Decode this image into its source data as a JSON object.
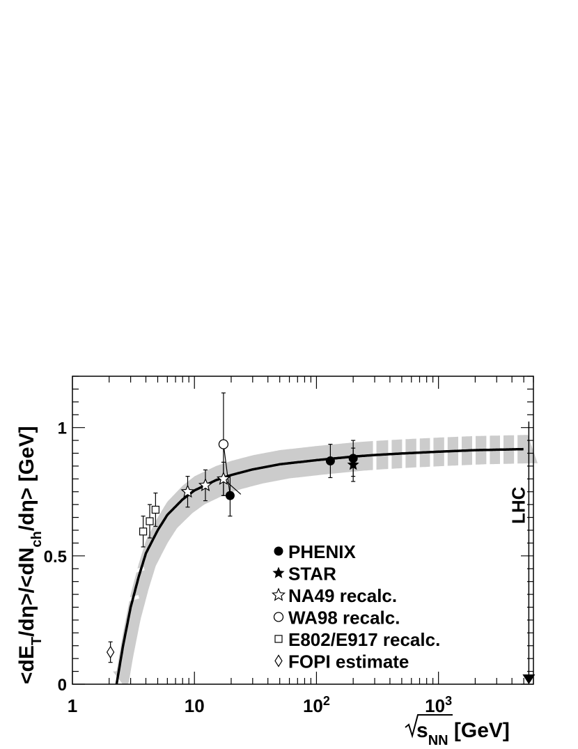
{
  "chart_data": {
    "type": "scatter",
    "xscale": "log",
    "xlim": [
      1,
      6000
    ],
    "ylim": [
      0,
      1.2
    ],
    "xlabel_main": "√s",
    "xlabel_sub": "NN",
    "xlabel_unit": " [GeV]",
    "ylabel": "<dE_T/dη>/<dN_ch/dη> [GeV]",
    "ylabel_parts": {
      "a": "<dE",
      "a_sub": "T",
      "b": "/dη>/<dN",
      "b_sub": "ch",
      "c": "/dη> [GeV]"
    },
    "x_ticks": [
      {
        "value": 1,
        "base": "1",
        "exp": ""
      },
      {
        "value": 10,
        "base": "10",
        "exp": ""
      },
      {
        "value": 100,
        "base": "10",
        "exp": "2"
      },
      {
        "value": 1000,
        "base": "10",
        "exp": "3"
      }
    ],
    "y_ticks": [
      {
        "value": 0,
        "label": "0"
      },
      {
        "value": 0.5,
        "label": "0.5"
      },
      {
        "value": 1,
        "label": "1"
      }
    ],
    "fit_curve": {
      "description": "a + b*ln(sqrt(s)), with uncertainty band",
      "points": [
        [
          2.3,
          0.0
        ],
        [
          2.6,
          0.15
        ],
        [
          3.0,
          0.3
        ],
        [
          3.5,
          0.42
        ],
        [
          4.0,
          0.51
        ],
        [
          5.0,
          0.6
        ],
        [
          6.0,
          0.66
        ],
        [
          8.0,
          0.72
        ],
        [
          10,
          0.755
        ],
        [
          15,
          0.795
        ],
        [
          20,
          0.815
        ],
        [
          30,
          0.837
        ],
        [
          50,
          0.857
        ],
        [
          100,
          0.873
        ],
        [
          200,
          0.887
        ],
        [
          300,
          0.893
        ],
        [
          500,
          0.899
        ],
        [
          1000,
          0.906
        ],
        [
          2000,
          0.912
        ],
        [
          5000,
          0.916
        ]
      ],
      "band_halfwidth": [
        [
          2.3,
          0.05
        ],
        [
          3.0,
          0.05
        ],
        [
          5.0,
          0.05
        ],
        [
          10,
          0.055
        ],
        [
          30,
          0.055
        ],
        [
          100,
          0.055
        ],
        [
          1000,
          0.055
        ],
        [
          5000,
          0.055
        ]
      ],
      "color": "#000000",
      "band_color": "#cccccc"
    },
    "series": [
      {
        "name": "PHENIX",
        "marker": "filled-circle",
        "points": [
          {
            "x": 19.6,
            "y": 0.735,
            "yerr": 0.08,
            "line_to": {
              "x": 17.3,
              "y": 0.935
            }
          },
          {
            "x": 130,
            "y": 0.87,
            "yerr": 0.065
          },
          {
            "x": 200,
            "y": 0.88,
            "yerr": 0.07
          }
        ]
      },
      {
        "name": "STAR",
        "marker": "filled-star",
        "points": [
          {
            "x": 200,
            "y": 0.855,
            "yerr": 0.065
          }
        ]
      },
      {
        "name": "NA49 recalc.",
        "marker": "open-star",
        "points": [
          {
            "x": 8.8,
            "y": 0.75,
            "yerr": 0.06
          },
          {
            "x": 12.3,
            "y": 0.775,
            "yerr": 0.06
          },
          {
            "x": 17.3,
            "y": 0.8,
            "yerr": 0.065,
            "line_to": {
              "x": 24.0,
              "y": 0.74
            }
          }
        ]
      },
      {
        "name": "WA98 recalc.",
        "marker": "open-circle",
        "points": [
          {
            "x": 17.3,
            "y": 0.935,
            "yerr": 0.2
          }
        ]
      },
      {
        "name": "E802/E917 recalc.",
        "marker": "open-square",
        "points": [
          {
            "x": 3.8,
            "y": 0.595,
            "yerr": 0.06
          },
          {
            "x": 4.3,
            "y": 0.635,
            "yerr": 0.065
          },
          {
            "x": 4.8,
            "y": 0.68,
            "yerr": 0.065
          }
        ]
      },
      {
        "name": "FOPI estimate",
        "marker": "open-diamond",
        "points": [
          {
            "x": 2.05,
            "y": 0.125,
            "yerr": 0.04
          }
        ]
      }
    ],
    "annotation": {
      "text": "LHC",
      "x": 5500
    },
    "legend": {
      "placement": "center-bottom",
      "entries": [
        "PHENIX",
        "STAR",
        "NA49 recalc.",
        "WA98 recalc.",
        "E802/E917 recalc.",
        "FOPI estimate"
      ]
    }
  }
}
